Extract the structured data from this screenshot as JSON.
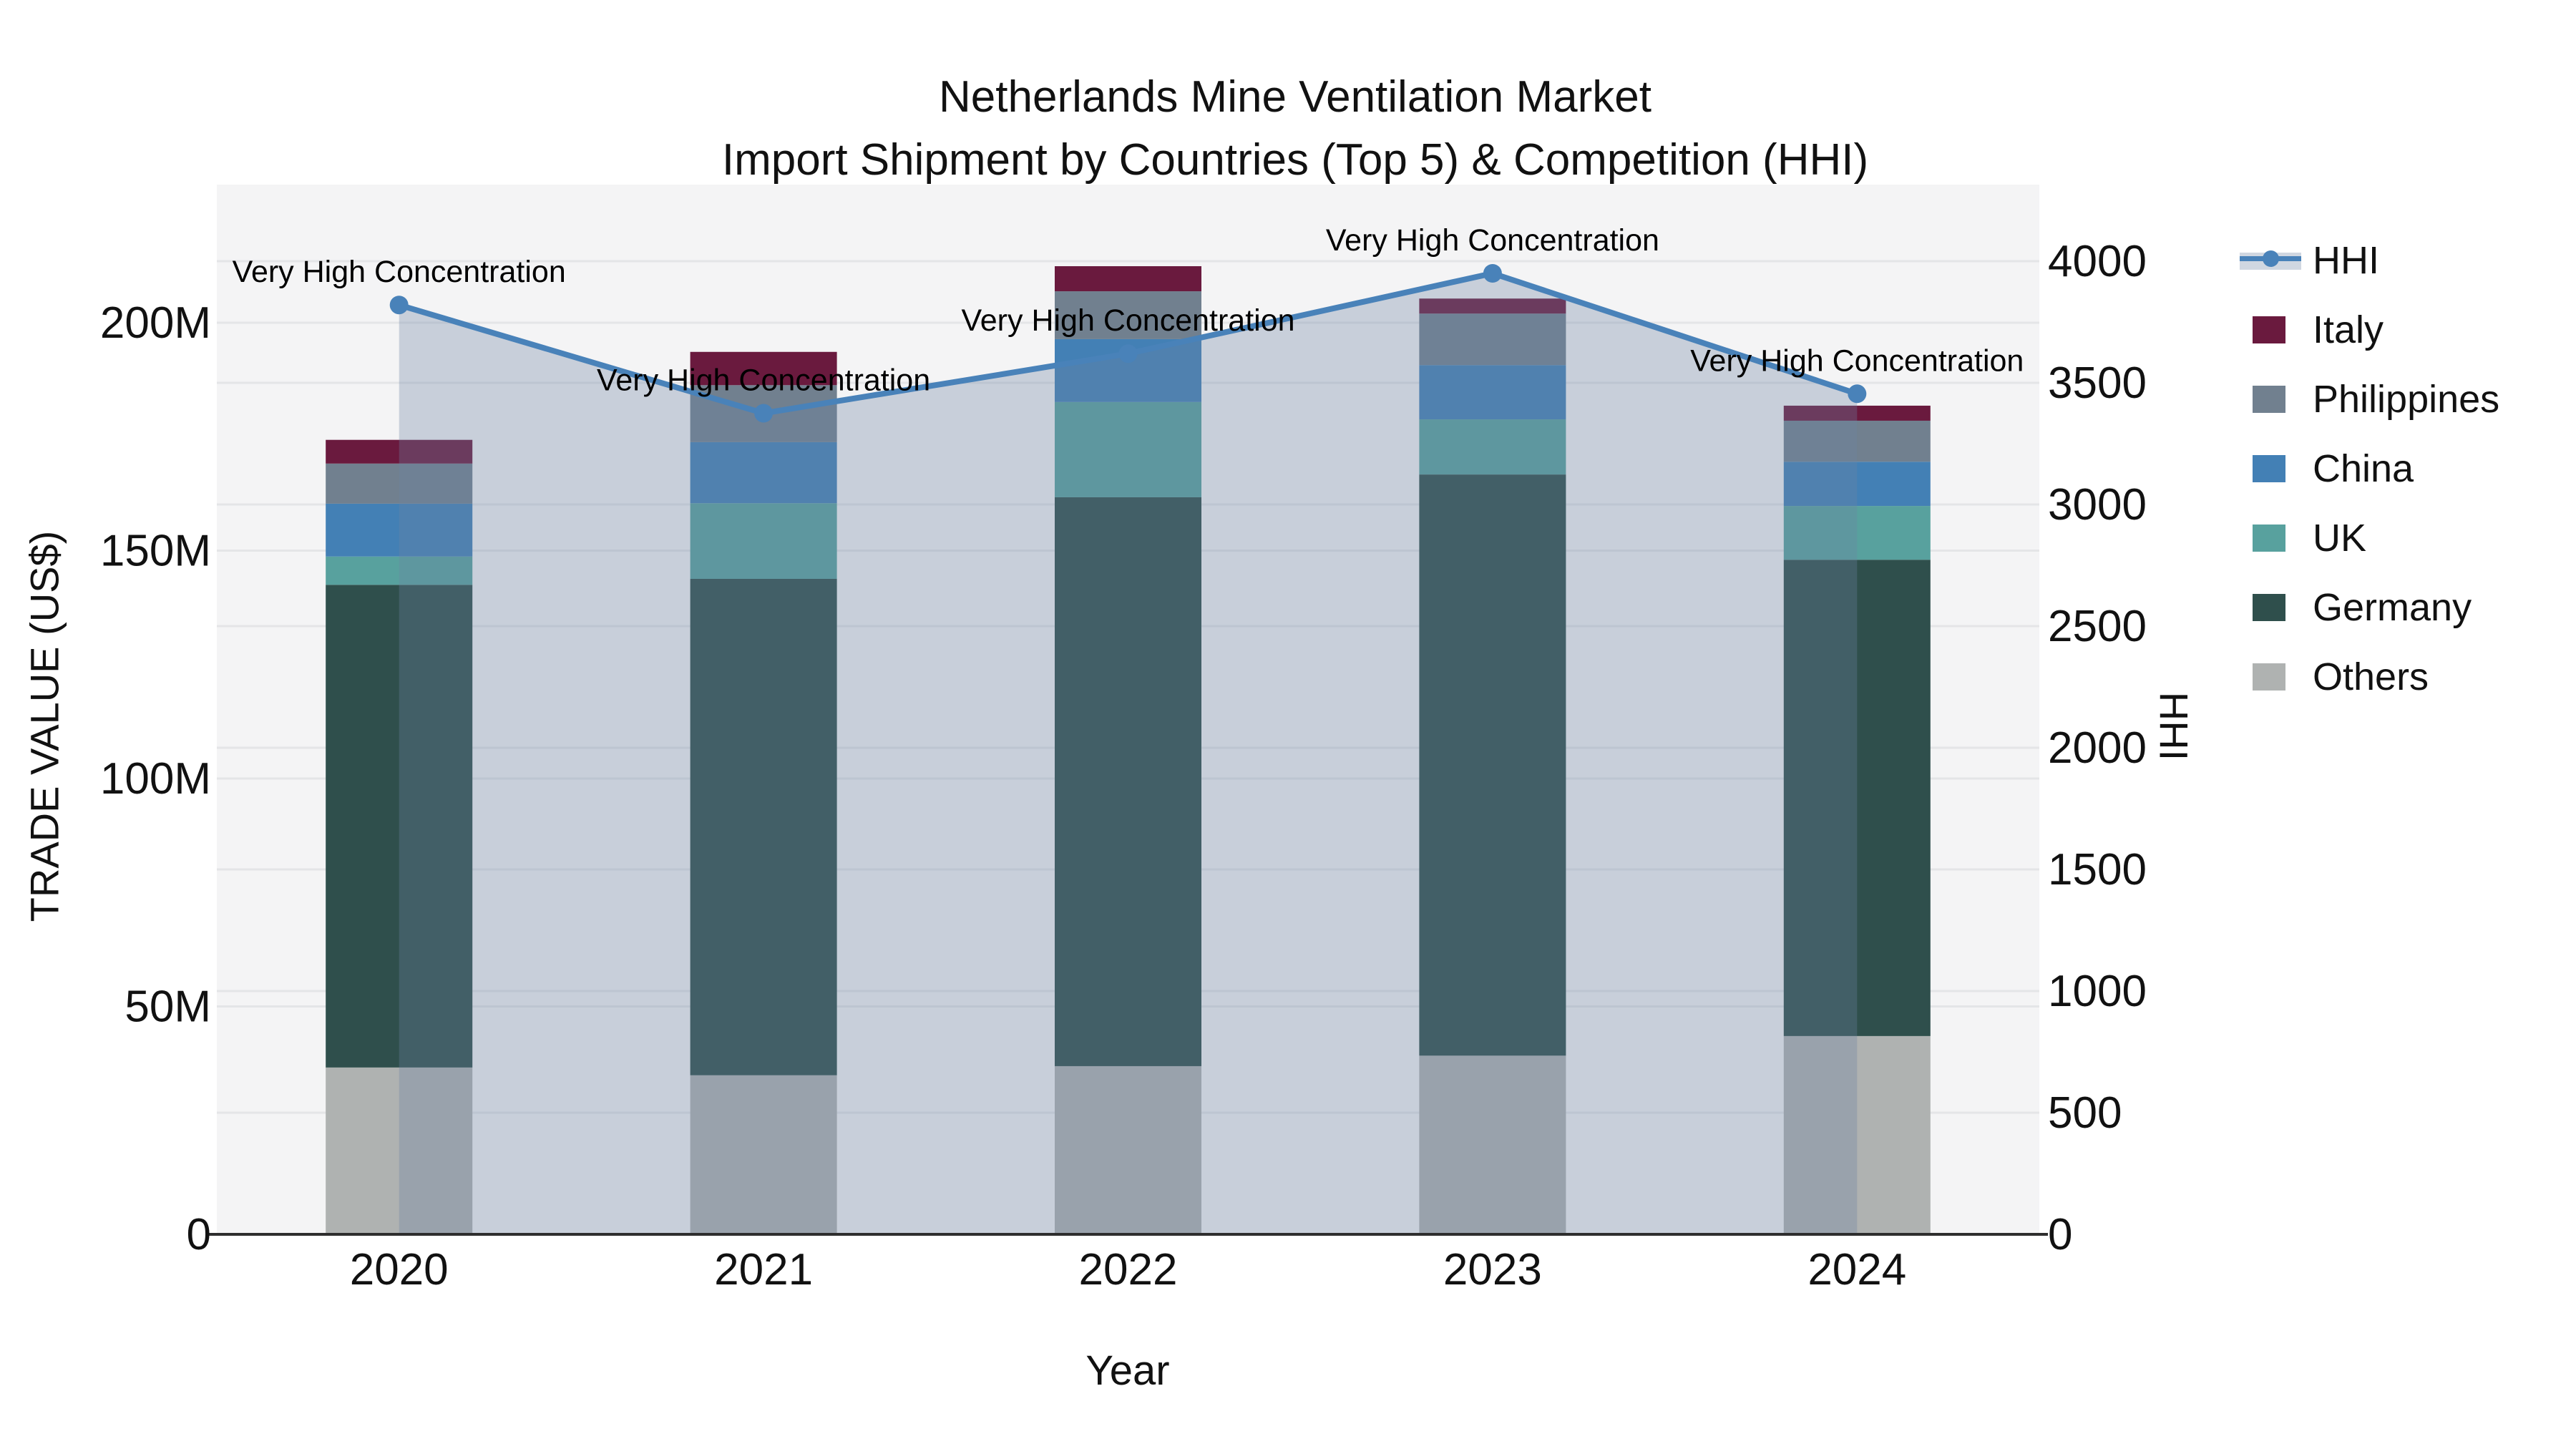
{
  "figure": {
    "title_line1": "Netherlands Mine Ventilation Market",
    "title_line2": "Import Shipment by Countries (Top 5) & Competition (HHI)"
  },
  "chart_data": {
    "type": "bar",
    "subtype": "stacked-bar-with-line-area-overlay-dual-axis",
    "title": "Netherlands Mine Ventilation Market Import Shipment by Countries (Top 5) & Competition (HHI)",
    "categories": [
      "2020",
      "2021",
      "2022",
      "2023",
      "2024"
    ],
    "value_unit_left": "Million US$",
    "stack_order_bottom_to_top": [
      "Others",
      "Germany",
      "UK",
      "China",
      "Philippines",
      "Italy"
    ],
    "series": [
      {
        "name": "Others",
        "values": [
          36.6,
          34.9,
          36.9,
          39.2,
          43.5
        ],
        "color": "#AFB2B1"
      },
      {
        "name": "Germany",
        "values": [
          105.9,
          108.9,
          124.8,
          127.5,
          104.5
        ],
        "color": "#2F4F4C"
      },
      {
        "name": "UK",
        "values": [
          6.2,
          16.6,
          20.9,
          12.1,
          11.8
        ],
        "color": "#58A19E"
      },
      {
        "name": "China",
        "values": [
          11.6,
          13.4,
          13.8,
          11.9,
          9.7
        ],
        "color": "#4380B5"
      },
      {
        "name": "Philippines",
        "values": [
          8.8,
          12.5,
          10.5,
          11.3,
          9.0
        ],
        "color": "#71808F"
      },
      {
        "name": "Italy",
        "values": [
          5.2,
          7.3,
          5.5,
          3.3,
          3.3
        ],
        "color": "#6A1A3E"
      }
    ],
    "bar_totals_million": [
      174.3,
      193.6,
      212.4,
      205.3,
      181.8
    ],
    "hhi": {
      "name": "HHI",
      "values": [
        3820,
        3375,
        3620,
        3950,
        3455
      ],
      "line_color": "#4982B9",
      "marker": "circle",
      "area_fill": "rgba(109,130,162,0.32)"
    },
    "point_annotations": [
      "Very High Concentration",
      "Very High Concentration",
      "Very High Concentration",
      "Very High Concentration",
      "Very High Concentration"
    ],
    "axes": {
      "x": {
        "title": "Year",
        "tick_labels": [
          "2020",
          "2021",
          "2022",
          "2023",
          "2024"
        ]
      },
      "y_left": {
        "title": "TRADE VALUE (US$)",
        "ticks": [
          {
            "value": 0,
            "label": "0"
          },
          {
            "value": 50,
            "label": "50M"
          },
          {
            "value": 100,
            "label": "100M"
          },
          {
            "value": 150,
            "label": "150M"
          },
          {
            "value": 200,
            "label": "200M"
          }
        ],
        "range_million": [
          0,
          230
        ]
      },
      "y_right": {
        "title": "HHI",
        "ticks": [
          {
            "value": 0,
            "label": "0"
          },
          {
            "value": 500,
            "label": "500"
          },
          {
            "value": 1000,
            "label": "1000"
          },
          {
            "value": 1500,
            "label": "1500"
          },
          {
            "value": 2000,
            "label": "2000"
          },
          {
            "value": 2500,
            "label": "2500"
          },
          {
            "value": 3000,
            "label": "3000"
          },
          {
            "value": 3500,
            "label": "3500"
          },
          {
            "value": 4000,
            "label": "4000"
          }
        ],
        "range": [
          0,
          4310
        ]
      }
    },
    "legend_position": "right",
    "grid": true,
    "legend": [
      {
        "label": "HHI",
        "type": "line",
        "color": "#4982B9"
      },
      {
        "label": "Italy",
        "type": "patch",
        "color": "#6A1A3E"
      },
      {
        "label": "Philippines",
        "type": "patch",
        "color": "#71808F"
      },
      {
        "label": "China",
        "type": "patch",
        "color": "#4380B5"
      },
      {
        "label": "UK",
        "type": "patch",
        "color": "#58A19E"
      },
      {
        "label": "Germany",
        "type": "patch",
        "color": "#2F4F4C"
      },
      {
        "label": "Others",
        "type": "patch",
        "color": "#AFB2B1"
      }
    ],
    "style": {
      "plot_bg": "#F4F4F5",
      "gridline_color": "#E4E5E7",
      "axis_line_color": "#2E2E2E",
      "text_color": "#111111"
    }
  }
}
